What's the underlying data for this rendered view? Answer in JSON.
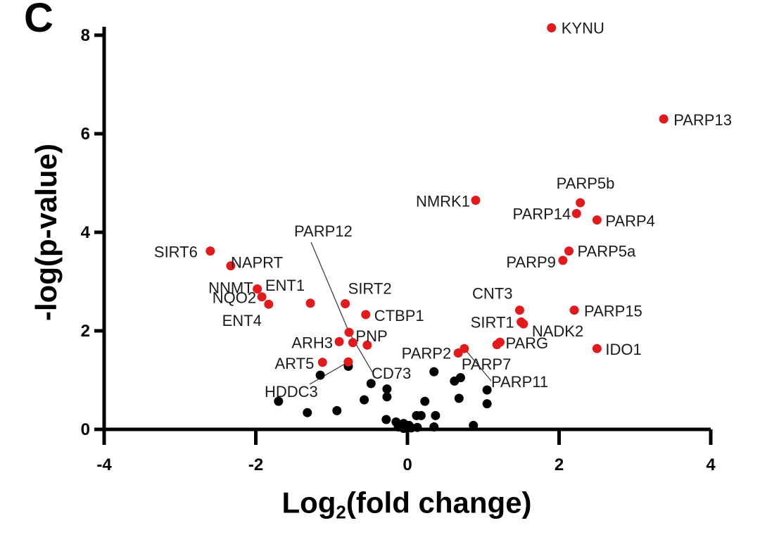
{
  "panel_letter": "C",
  "chart_data": {
    "type": "scatter",
    "title": "",
    "xlabel_main": "Log",
    "xlabel_sub": "2",
    "xlabel_rest": "(fold change)",
    "ylabel": "-log(p-value)",
    "xlim": [
      -4,
      4
    ],
    "ylim": [
      0,
      8
    ],
    "x_ticks": [
      -4,
      -2,
      0,
      2,
      4
    ],
    "y_ticks": [
      0,
      2,
      4,
      6,
      8
    ],
    "grid": false,
    "colors": {
      "significant": "#e31a1c",
      "nonsignificant": "#000000",
      "axis": "#000000",
      "text": "#1a1a1a"
    },
    "significant_points": [
      {
        "label": "KYNU",
        "x": 1.9,
        "y": 8.15
      },
      {
        "label": "PARP13",
        "x": 3.38,
        "y": 6.3
      },
      {
        "label": "PARP5b",
        "x": 2.28,
        "y": 4.6
      },
      {
        "label": "PARP14",
        "x": 2.23,
        "y": 4.38
      },
      {
        "label": "PARP4",
        "x": 2.5,
        "y": 4.25
      },
      {
        "label": "NMRK1",
        "x": 0.9,
        "y": 4.65
      },
      {
        "label": "PARP5a",
        "x": 2.13,
        "y": 3.62
      },
      {
        "label": "PARP9",
        "x": 2.05,
        "y": 3.43
      },
      {
        "label": "SIRT6",
        "x": -2.6,
        "y": 3.62
      },
      {
        "label": "NAPRT",
        "x": -2.33,
        "y": 3.32
      },
      {
        "label": "NNMT",
        "x": -1.98,
        "y": 2.85
      },
      {
        "label": "NQO2",
        "x": -1.92,
        "y": 2.69
      },
      {
        "label": "ENT4",
        "x": -1.83,
        "y": 2.54
      },
      {
        "label": "ENT1",
        "x": -1.28,
        "y": 2.56
      },
      {
        "label": "SIRT2",
        "x": -0.82,
        "y": 2.55
      },
      {
        "label": "CTBP1",
        "x": -0.55,
        "y": 2.33
      },
      {
        "label": "CNT3",
        "x": 1.48,
        "y": 2.42
      },
      {
        "label": "PARP15",
        "x": 2.2,
        "y": 2.42
      },
      {
        "label": "SIRT1",
        "x": 1.5,
        "y": 2.18
      },
      {
        "label": "NADK2",
        "x": 1.53,
        "y": 2.14
      },
      {
        "label": "PARP12",
        "x": -0.77,
        "y": 1.97
      },
      {
        "label": "ARH3",
        "x": -0.9,
        "y": 1.78
      },
      {
        "label": "PNP",
        "x": -0.72,
        "y": 1.76
      },
      {
        "label": "",
        "x": -0.53,
        "y": 1.71
      },
      {
        "label": "PARG",
        "x": 1.22,
        "y": 1.77
      },
      {
        "label": "",
        "x": 1.18,
        "y": 1.72
      },
      {
        "label": "IDO1",
        "x": 2.5,
        "y": 1.64
      },
      {
        "label": "PARP2",
        "x": 0.67,
        "y": 1.55
      },
      {
        "label": "PARP7",
        "x": 0.75,
        "y": 1.64
      },
      {
        "label": "ART5",
        "x": -1.12,
        "y": 1.36
      },
      {
        "label": "CD73",
        "x": -0.78,
        "y": 1.37
      }
    ],
    "nonsignificant_points": [
      {
        "x": -1.7,
        "y": 0.57
      },
      {
        "x": -1.32,
        "y": 0.34
      },
      {
        "x": -1.15,
        "y": 1.1
      },
      {
        "x": -0.93,
        "y": 0.38
      },
      {
        "x": -0.78,
        "y": 1.28
      },
      {
        "x": -0.57,
        "y": 0.6
      },
      {
        "x": -0.48,
        "y": 0.93
      },
      {
        "x": -0.27,
        "y": 0.82
      },
      {
        "x": -0.27,
        "y": 0.66
      },
      {
        "x": -0.28,
        "y": 0.2
      },
      {
        "x": -0.15,
        "y": 0.15
      },
      {
        "x": -0.12,
        "y": 0.05
      },
      {
        "x": -0.05,
        "y": 0.02
      },
      {
        "x": 0.05,
        "y": 0.03
      },
      {
        "x": 0.12,
        "y": 0.28
      },
      {
        "x": 0.18,
        "y": 0.28
      },
      {
        "x": 0.23,
        "y": 0.57
      },
      {
        "x": 0.35,
        "y": 1.17
      },
      {
        "x": 0.37,
        "y": 0.28
      },
      {
        "x": 0.35,
        "y": 0.05
      },
      {
        "x": 0.13,
        "y": 0.04
      },
      {
        "x": 0.62,
        "y": 0.98
      },
      {
        "x": 0.7,
        "y": 1.05
      },
      {
        "x": 0.68,
        "y": 0.63
      },
      {
        "x": 0.87,
        "y": 0.08
      },
      {
        "x": 1.05,
        "y": 0.8
      },
      {
        "x": 1.05,
        "y": 0.52
      },
      {
        "x": 0.02,
        "y": 0.08
      },
      {
        "x": -0.05,
        "y": 0.12
      }
    ]
  }
}
